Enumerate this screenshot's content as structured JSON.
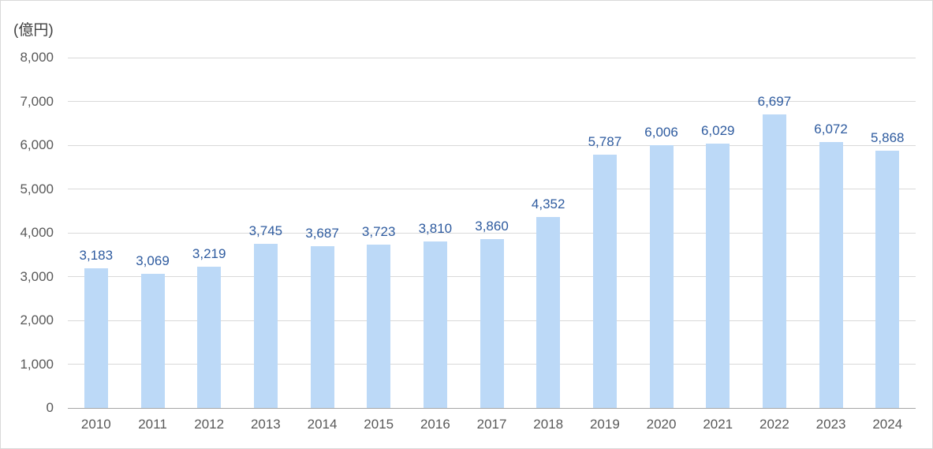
{
  "chart_data": {
    "type": "bar",
    "title": "",
    "unit_label": "(億円)",
    "categories": [
      "2010",
      "2011",
      "2012",
      "2013",
      "2014",
      "2015",
      "2016",
      "2017",
      "2018",
      "2019",
      "2020",
      "2021",
      "2022",
      "2023",
      "2024"
    ],
    "values": [
      3183,
      3069,
      3219,
      3745,
      3687,
      3723,
      3810,
      3860,
      4352,
      5787,
      6006,
      6029,
      6697,
      6072,
      5868
    ],
    "value_labels": [
      "3,183",
      "3,069",
      "3,219",
      "3,745",
      "3,687",
      "3,723",
      "3,810",
      "3,860",
      "4,352",
      "5,787",
      "6,006",
      "6,029",
      "6,697",
      "6,072",
      "5,868"
    ],
    "xlabel": "",
    "ylabel": "(億円)",
    "ylim": [
      0,
      8000
    ],
    "ytick_step": 1000,
    "ytick_labels": [
      "0",
      "1,000",
      "2,000",
      "3,000",
      "4,000",
      "5,000",
      "6,000",
      "7,000",
      "8,000"
    ],
    "grid": true,
    "legend": "none",
    "colors": {
      "bar_fill": "#BCD9F7",
      "data_label": "#2E5B9F",
      "axis_text": "#595959",
      "unit_text": "#404040",
      "gridline": "#D9D9D9",
      "axis_line": "#A6A6A6",
      "border": "#D9D9D9",
      "background": "#FFFFFF"
    }
  }
}
